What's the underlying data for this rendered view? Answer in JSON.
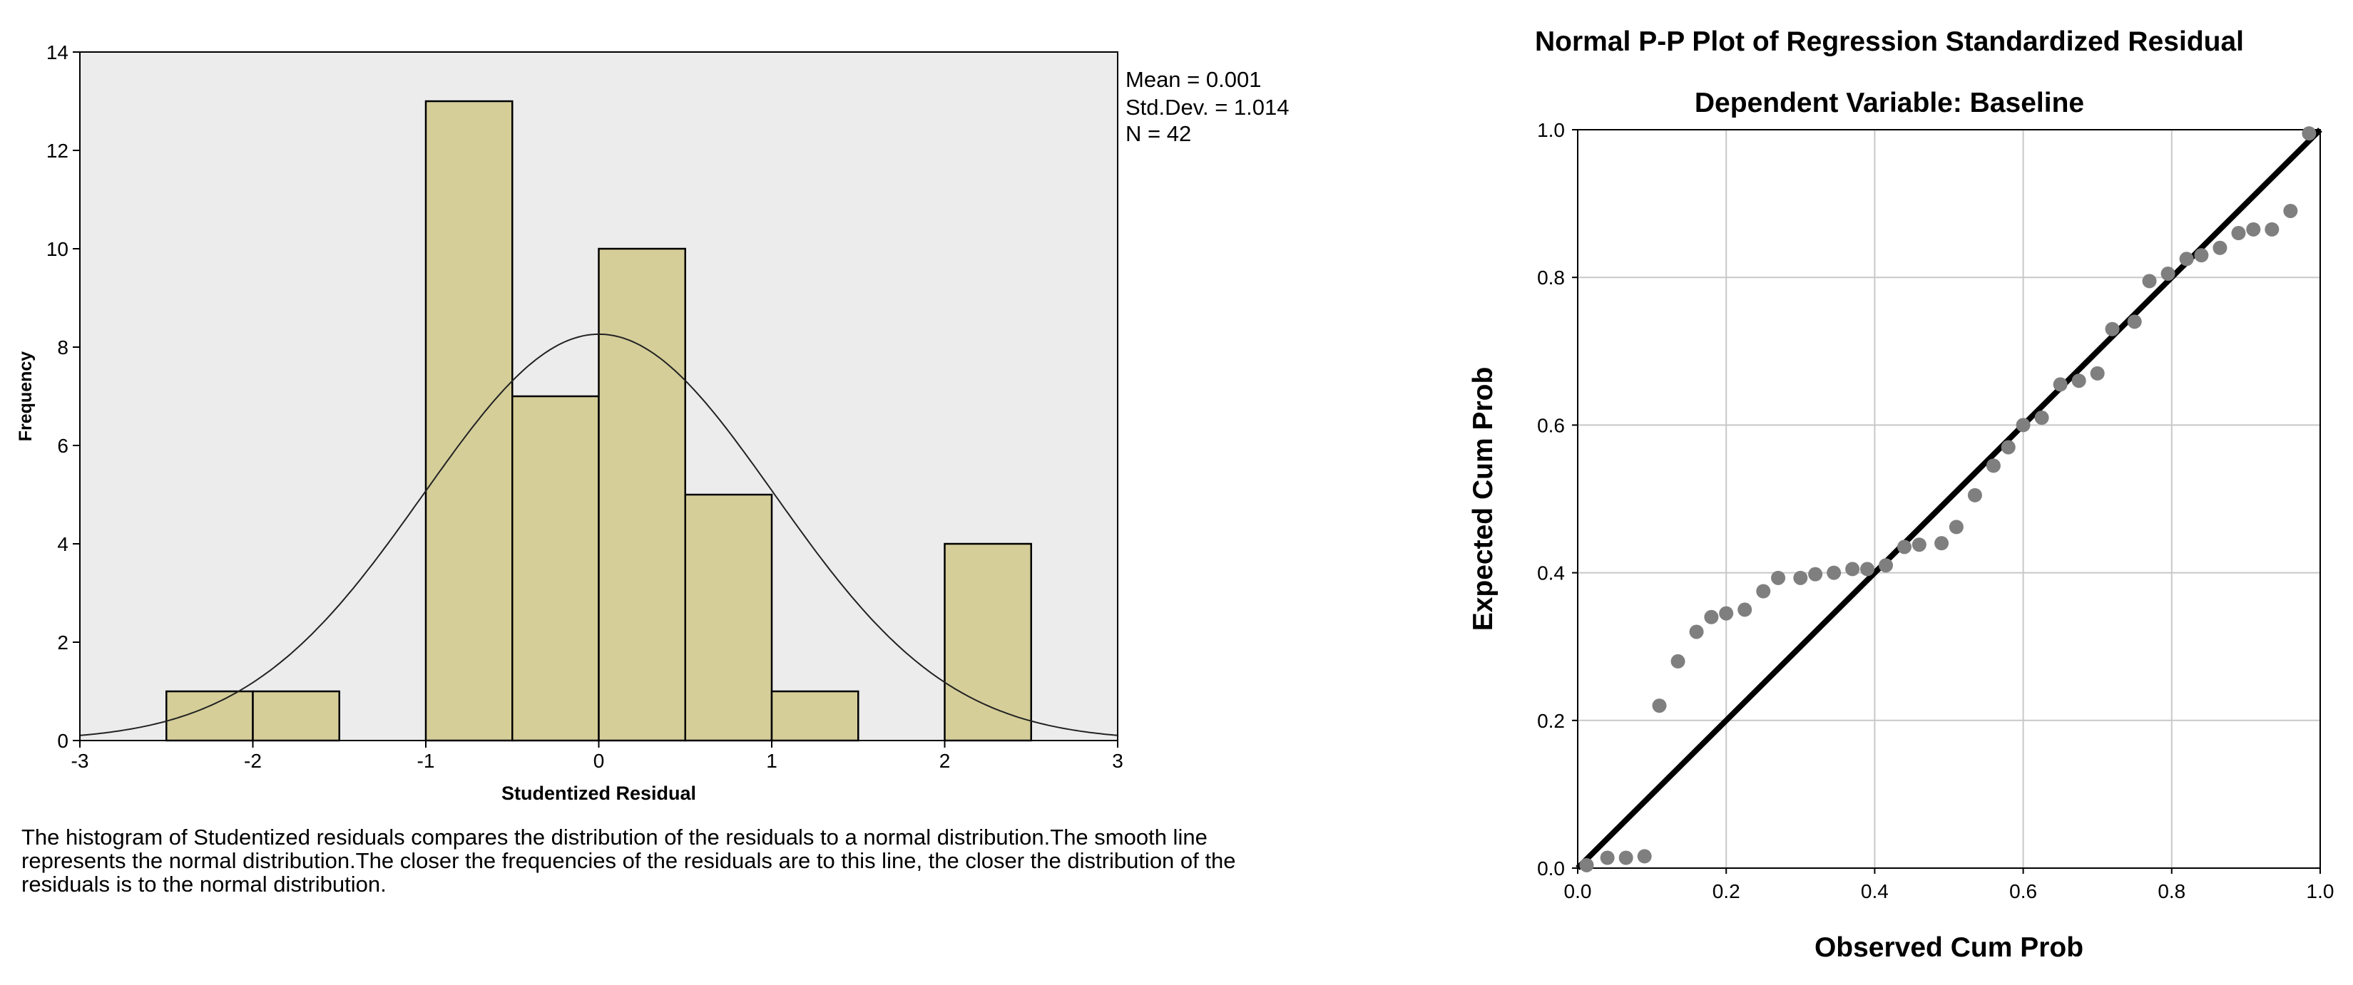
{
  "chart_data": [
    {
      "type": "histogram",
      "ylabel": "Frequency",
      "xlabel": "Studentized Residual",
      "xlim": [
        -3,
        3
      ],
      "ylim": [
        0,
        14
      ],
      "x_ticks": [
        "-3",
        "-2",
        "-1",
        "0",
        "1",
        "2",
        "3"
      ],
      "y_ticks": [
        "0",
        "2",
        "4",
        "6",
        "8",
        "10",
        "12",
        "14"
      ],
      "bins": [
        {
          "from": -2.5,
          "to": -2.0,
          "count": 1
        },
        {
          "from": -2.0,
          "to": -1.5,
          "count": 1
        },
        {
          "from": -1.0,
          "to": -0.5,
          "count": 13
        },
        {
          "from": -0.5,
          "to": 0.0,
          "count": 7
        },
        {
          "from": 0.0,
          "to": 0.5,
          "count": 10
        },
        {
          "from": 0.5,
          "to": 1.0,
          "count": 5
        },
        {
          "from": 1.0,
          "to": 1.5,
          "count": 1
        },
        {
          "from": 2.0,
          "to": 2.5,
          "count": 4
        }
      ],
      "normal_curve": {
        "mean": 0.001,
        "sd": 1.014,
        "n": 42,
        "bin_width": 0.5
      },
      "stats": {
        "mean": "Mean = 0.001",
        "sd": "Std.Dev. = 1.014",
        "n": "N = 42"
      },
      "bar_color": "#d5ce99",
      "plot_bg": "#ececec",
      "caption": "The histogram of Studentized residuals compares the distribution of the residuals to a normal distribution.The smooth line represents the normal distribution.The closer the frequencies of the residuals are to this line, the closer the distribution of the residuals is to the normal distribution."
    },
    {
      "type": "scatter",
      "title": "Normal P-P Plot of Regression Standardized Residual",
      "subtitle": "Dependent Variable: Baseline",
      "xlabel": "Observed Cum Prob",
      "ylabel": "Expected Cum Prob",
      "xlim": [
        0,
        1
      ],
      "ylim": [
        0,
        1
      ],
      "x_ticks": [
        "0.0",
        "0.2",
        "0.4",
        "0.6",
        "0.8",
        "1.0"
      ],
      "y_ticks": [
        "0.0",
        "0.2",
        "0.4",
        "0.6",
        "0.8",
        "1.0"
      ],
      "grid": true,
      "reference_line": [
        [
          0,
          0
        ],
        [
          1,
          1
        ]
      ],
      "point_color": "#7f7f7f",
      "points": [
        [
          0.012,
          0.004
        ],
        [
          0.04,
          0.014
        ],
        [
          0.065,
          0.014
        ],
        [
          0.09,
          0.016
        ],
        [
          0.11,
          0.22
        ],
        [
          0.135,
          0.28
        ],
        [
          0.16,
          0.32
        ],
        [
          0.18,
          0.34
        ],
        [
          0.2,
          0.345
        ],
        [
          0.225,
          0.35
        ],
        [
          0.25,
          0.375
        ],
        [
          0.27,
          0.393
        ],
        [
          0.3,
          0.393
        ],
        [
          0.32,
          0.398
        ],
        [
          0.345,
          0.4
        ],
        [
          0.37,
          0.405
        ],
        [
          0.39,
          0.405
        ],
        [
          0.415,
          0.41
        ],
        [
          0.44,
          0.435
        ],
        [
          0.46,
          0.438
        ],
        [
          0.49,
          0.44
        ],
        [
          0.51,
          0.462
        ],
        [
          0.535,
          0.505
        ],
        [
          0.56,
          0.545
        ],
        [
          0.58,
          0.57
        ],
        [
          0.6,
          0.6
        ],
        [
          0.625,
          0.61
        ],
        [
          0.65,
          0.655
        ],
        [
          0.675,
          0.66
        ],
        [
          0.7,
          0.67
        ],
        [
          0.72,
          0.73
        ],
        [
          0.75,
          0.74
        ],
        [
          0.77,
          0.795
        ],
        [
          0.795,
          0.805
        ],
        [
          0.82,
          0.825
        ],
        [
          0.84,
          0.83
        ],
        [
          0.865,
          0.84
        ],
        [
          0.89,
          0.86
        ],
        [
          0.91,
          0.865
        ],
        [
          0.935,
          0.865
        ],
        [
          0.96,
          0.89
        ],
        [
          0.985,
          0.995
        ]
      ]
    }
  ]
}
